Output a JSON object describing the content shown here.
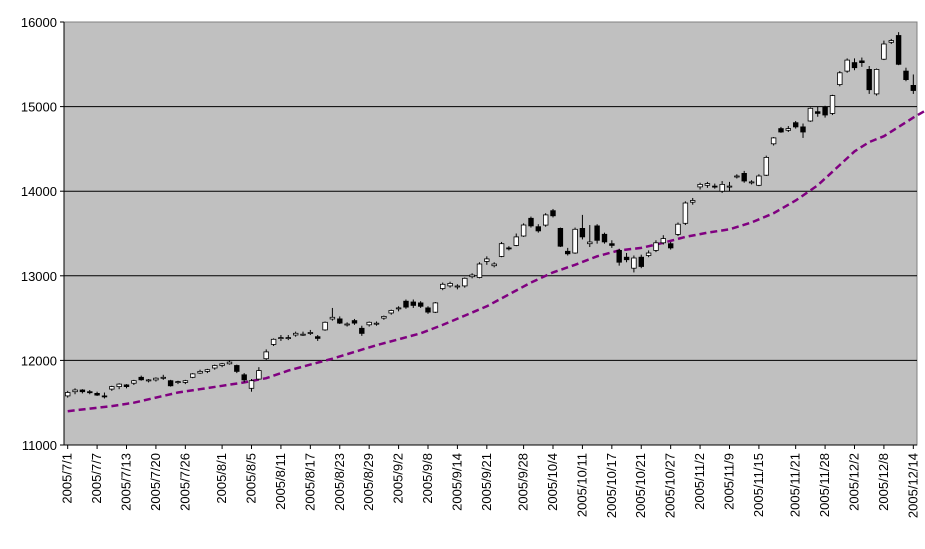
{
  "chart_data": {
    "type": "candlestick",
    "title": "",
    "xlabel": "",
    "ylabel": "",
    "ylim": [
      11000,
      16000
    ],
    "yticks": [
      11000,
      12000,
      13000,
      14000,
      15000,
      16000
    ],
    "yticklabels": [
      "11000",
      "12000",
      "13000",
      "14000",
      "15000",
      "16000"
    ],
    "xticklabels": [
      "2005/7/1",
      "2005/7/7",
      "2005/7/13",
      "2005/7/20",
      "2005/7/26",
      "2005/8/1",
      "2005/8/5",
      "2005/8/11",
      "2005/8/17",
      "2005/8/23",
      "2005/8/29",
      "2005/9/2",
      "2005/9/8",
      "2005/9/14",
      "2005/9/21",
      "2005/9/28",
      "2005/10/4",
      "2005/10/11",
      "2005/10/17",
      "2005/10/21",
      "2005/10/27",
      "2005/11/2",
      "2005/11/9",
      "2005/11/15",
      "2005/11/21",
      "2005/11/28",
      "2005/12/2",
      "2005/12/8",
      "2005/12/14"
    ],
    "grid": true,
    "plot_background": "#c0c0c0",
    "up_color": "#ffffff",
    "down_color": "#000000",
    "ma_color": "#800080",
    "legend": "none",
    "series": [
      {
        "type": "candlestick",
        "values": [
          {
            "o": 11580,
            "h": 11640,
            "l": 11560,
            "c": 11620
          },
          {
            "o": 11630,
            "h": 11670,
            "l": 11600,
            "c": 11650
          },
          {
            "o": 11650,
            "h": 11660,
            "l": 11610,
            "c": 11630
          },
          {
            "o": 11630,
            "h": 11650,
            "l": 11600,
            "c": 11620
          },
          {
            "o": 11610,
            "h": 11630,
            "l": 11580,
            "c": 11590
          },
          {
            "o": 11580,
            "h": 11620,
            "l": 11550,
            "c": 11570
          },
          {
            "o": 11660,
            "h": 11700,
            "l": 11640,
            "c": 11690
          },
          {
            "o": 11690,
            "h": 11730,
            "l": 11660,
            "c": 11720
          },
          {
            "o": 11710,
            "h": 11720,
            "l": 11670,
            "c": 11690
          },
          {
            "o": 11730,
            "h": 11770,
            "l": 11710,
            "c": 11760
          },
          {
            "o": 11800,
            "h": 11820,
            "l": 11760,
            "c": 11770
          },
          {
            "o": 11760,
            "h": 11780,
            "l": 11740,
            "c": 11770
          },
          {
            "o": 11770,
            "h": 11800,
            "l": 11750,
            "c": 11790
          },
          {
            "o": 11790,
            "h": 11830,
            "l": 11770,
            "c": 11800
          },
          {
            "o": 11760,
            "h": 11770,
            "l": 11690,
            "c": 11700
          },
          {
            "o": 11740,
            "h": 11760,
            "l": 11720,
            "c": 11750
          },
          {
            "o": 11740,
            "h": 11770,
            "l": 11720,
            "c": 11760
          },
          {
            "o": 11800,
            "h": 11850,
            "l": 11790,
            "c": 11840
          },
          {
            "o": 11850,
            "h": 11890,
            "l": 11840,
            "c": 11870
          },
          {
            "o": 11870,
            "h": 11900,
            "l": 11850,
            "c": 11890
          },
          {
            "o": 11910,
            "h": 11950,
            "l": 11890,
            "c": 11940
          },
          {
            "o": 11940,
            "h": 11970,
            "l": 11920,
            "c": 11960
          },
          {
            "o": 11960,
            "h": 12000,
            "l": 11950,
            "c": 11980
          },
          {
            "o": 11940,
            "h": 11950,
            "l": 11850,
            "c": 11870
          },
          {
            "o": 11830,
            "h": 11850,
            "l": 11740,
            "c": 11770
          },
          {
            "o": 11670,
            "h": 11780,
            "l": 11630,
            "c": 11760
          },
          {
            "o": 11780,
            "h": 11920,
            "l": 11770,
            "c": 11880
          },
          {
            "o": 12020,
            "h": 12130,
            "l": 12000,
            "c": 12100
          },
          {
            "o": 12190,
            "h": 12260,
            "l": 12170,
            "c": 12250
          },
          {
            "o": 12260,
            "h": 12300,
            "l": 12230,
            "c": 12270
          },
          {
            "o": 12270,
            "h": 12300,
            "l": 12240,
            "c": 12270
          },
          {
            "o": 12300,
            "h": 12340,
            "l": 12280,
            "c": 12320
          },
          {
            "o": 12310,
            "h": 12340,
            "l": 12290,
            "c": 12310
          },
          {
            "o": 12320,
            "h": 12360,
            "l": 12300,
            "c": 12330
          },
          {
            "o": 12280,
            "h": 12300,
            "l": 12230,
            "c": 12260
          },
          {
            "o": 12360,
            "h": 12460,
            "l": 12350,
            "c": 12450
          },
          {
            "o": 12490,
            "h": 12620,
            "l": 12470,
            "c": 12510
          },
          {
            "o": 12490,
            "h": 12520,
            "l": 12430,
            "c": 12440
          },
          {
            "o": 12420,
            "h": 12450,
            "l": 12400,
            "c": 12430
          },
          {
            "o": 12470,
            "h": 12490,
            "l": 12420,
            "c": 12440
          },
          {
            "o": 12380,
            "h": 12410,
            "l": 12290,
            "c": 12320
          },
          {
            "o": 12420,
            "h": 12460,
            "l": 12400,
            "c": 12450
          },
          {
            "o": 12430,
            "h": 12460,
            "l": 12410,
            "c": 12440
          },
          {
            "o": 12500,
            "h": 12530,
            "l": 12480,
            "c": 12520
          },
          {
            "o": 12560,
            "h": 12600,
            "l": 12540,
            "c": 12590
          },
          {
            "o": 12610,
            "h": 12640,
            "l": 12580,
            "c": 12620
          },
          {
            "o": 12700,
            "h": 12720,
            "l": 12610,
            "c": 12630
          },
          {
            "o": 12690,
            "h": 12720,
            "l": 12620,
            "c": 12650
          },
          {
            "o": 12680,
            "h": 12700,
            "l": 12620,
            "c": 12640
          },
          {
            "o": 12620,
            "h": 12640,
            "l": 12550,
            "c": 12570
          },
          {
            "o": 12570,
            "h": 12690,
            "l": 12560,
            "c": 12680
          },
          {
            "o": 12850,
            "h": 12920,
            "l": 12830,
            "c": 12900
          },
          {
            "o": 12880,
            "h": 12930,
            "l": 12860,
            "c": 12910
          },
          {
            "o": 12870,
            "h": 12900,
            "l": 12840,
            "c": 12880
          },
          {
            "o": 12880,
            "h": 12980,
            "l": 12860,
            "c": 12970
          },
          {
            "o": 12990,
            "h": 13030,
            "l": 12970,
            "c": 13010
          },
          {
            "o": 12980,
            "h": 13160,
            "l": 12970,
            "c": 13140
          },
          {
            "o": 13170,
            "h": 13230,
            "l": 13130,
            "c": 13200
          },
          {
            "o": 13120,
            "h": 13160,
            "l": 13100,
            "c": 13140
          },
          {
            "o": 13230,
            "h": 13400,
            "l": 13220,
            "c": 13380
          },
          {
            "o": 13330,
            "h": 13350,
            "l": 13300,
            "c": 13320
          },
          {
            "o": 13360,
            "h": 13500,
            "l": 13350,
            "c": 13460
          },
          {
            "o": 13470,
            "h": 13620,
            "l": 13460,
            "c": 13600
          },
          {
            "o": 13680,
            "h": 13700,
            "l": 13570,
            "c": 13590
          },
          {
            "o": 13580,
            "h": 13610,
            "l": 13510,
            "c": 13530
          },
          {
            "o": 13600,
            "h": 13740,
            "l": 13580,
            "c": 13720
          },
          {
            "o": 13770,
            "h": 13790,
            "l": 13690,
            "c": 13710
          },
          {
            "o": 13560,
            "h": 13570,
            "l": 13340,
            "c": 13350
          },
          {
            "o": 13290,
            "h": 13330,
            "l": 13240,
            "c": 13260
          },
          {
            "o": 13270,
            "h": 13570,
            "l": 13260,
            "c": 13550
          },
          {
            "o": 13560,
            "h": 13720,
            "l": 13430,
            "c": 13460
          },
          {
            "o": 13380,
            "h": 13600,
            "l": 13340,
            "c": 13400
          },
          {
            "o": 13590,
            "h": 13610,
            "l": 13380,
            "c": 13420
          },
          {
            "o": 13490,
            "h": 13510,
            "l": 13380,
            "c": 13400
          },
          {
            "o": 13380,
            "h": 13420,
            "l": 13330,
            "c": 13360
          },
          {
            "o": 13300,
            "h": 13320,
            "l": 13120,
            "c": 13160
          },
          {
            "o": 13220,
            "h": 13270,
            "l": 13160,
            "c": 13190
          },
          {
            "o": 13090,
            "h": 13240,
            "l": 13040,
            "c": 13210
          },
          {
            "o": 13220,
            "h": 13250,
            "l": 13090,
            "c": 13110
          },
          {
            "o": 13240,
            "h": 13300,
            "l": 13220,
            "c": 13270
          },
          {
            "o": 13300,
            "h": 13420,
            "l": 13280,
            "c": 13390
          },
          {
            "o": 13390,
            "h": 13480,
            "l": 13370,
            "c": 13440
          },
          {
            "o": 13380,
            "h": 13400,
            "l": 13310,
            "c": 13330
          },
          {
            "o": 13490,
            "h": 13630,
            "l": 13470,
            "c": 13610
          },
          {
            "o": 13620,
            "h": 13880,
            "l": 13600,
            "c": 13860
          },
          {
            "o": 13870,
            "h": 13920,
            "l": 13840,
            "c": 13890
          },
          {
            "o": 14050,
            "h": 14100,
            "l": 14020,
            "c": 14080
          },
          {
            "o": 14070,
            "h": 14110,
            "l": 14040,
            "c": 14090
          },
          {
            "o": 14060,
            "h": 14090,
            "l": 14030,
            "c": 14050
          },
          {
            "o": 14000,
            "h": 14120,
            "l": 13980,
            "c": 14080
          },
          {
            "o": 14050,
            "h": 14110,
            "l": 14000,
            "c": 14060
          },
          {
            "o": 14170,
            "h": 14200,
            "l": 14150,
            "c": 14180
          },
          {
            "o": 14210,
            "h": 14240,
            "l": 14100,
            "c": 14120
          },
          {
            "o": 14100,
            "h": 14130,
            "l": 14080,
            "c": 14110
          },
          {
            "o": 14070,
            "h": 14200,
            "l": 14060,
            "c": 14180
          },
          {
            "o": 14190,
            "h": 14420,
            "l": 14180,
            "c": 14400
          },
          {
            "o": 14560,
            "h": 14640,
            "l": 14540,
            "c": 14630
          },
          {
            "o": 14740,
            "h": 14760,
            "l": 14690,
            "c": 14700
          },
          {
            "o": 14720,
            "h": 14770,
            "l": 14700,
            "c": 14740
          },
          {
            "o": 14810,
            "h": 14830,
            "l": 14740,
            "c": 14760
          },
          {
            "o": 14760,
            "h": 14800,
            "l": 14630,
            "c": 14700
          },
          {
            "o": 14830,
            "h": 14990,
            "l": 14820,
            "c": 14980
          },
          {
            "o": 14940,
            "h": 15000,
            "l": 14880,
            "c": 14920
          },
          {
            "o": 14990,
            "h": 15010,
            "l": 14870,
            "c": 14900
          },
          {
            "o": 14920,
            "h": 15140,
            "l": 14900,
            "c": 15130
          },
          {
            "o": 15260,
            "h": 15420,
            "l": 15240,
            "c": 15400
          },
          {
            "o": 15420,
            "h": 15570,
            "l": 15400,
            "c": 15550
          },
          {
            "o": 15520,
            "h": 15570,
            "l": 15430,
            "c": 15460
          },
          {
            "o": 15540,
            "h": 15580,
            "l": 15470,
            "c": 15520
          },
          {
            "o": 15440,
            "h": 15480,
            "l": 15150,
            "c": 15200
          },
          {
            "o": 15150,
            "h": 15450,
            "l": 15130,
            "c": 15440
          },
          {
            "o": 15560,
            "h": 15780,
            "l": 15550,
            "c": 15740
          },
          {
            "o": 15760,
            "h": 15800,
            "l": 15740,
            "c": 15780
          },
          {
            "o": 15840,
            "h": 15880,
            "l": 15490,
            "c": 15500
          },
          {
            "o": 15420,
            "h": 15460,
            "l": 15300,
            "c": 15320
          },
          {
            "o": 15250,
            "h": 15380,
            "l": 15150,
            "c": 15190
          }
        ]
      },
      {
        "type": "line",
        "style": "dashed",
        "values": [
          [
            0,
            11400
          ],
          [
            3,
            11430
          ],
          [
            6,
            11460
          ],
          [
            9,
            11500
          ],
          [
            12,
            11560
          ],
          [
            15,
            11620
          ],
          [
            18,
            11660
          ],
          [
            21,
            11700
          ],
          [
            24,
            11740
          ],
          [
            27,
            11790
          ],
          [
            30,
            11880
          ],
          [
            33,
            11950
          ],
          [
            36,
            12020
          ],
          [
            39,
            12100
          ],
          [
            42,
            12180
          ],
          [
            45,
            12250
          ],
          [
            48,
            12320
          ],
          [
            51,
            12420
          ],
          [
            54,
            12530
          ],
          [
            57,
            12640
          ],
          [
            60,
            12780
          ],
          [
            63,
            12920
          ],
          [
            66,
            13040
          ],
          [
            69,
            13130
          ],
          [
            72,
            13230
          ],
          [
            75,
            13300
          ],
          [
            78,
            13330
          ],
          [
            81,
            13390
          ],
          [
            84,
            13460
          ],
          [
            87,
            13510
          ],
          [
            90,
            13550
          ],
          [
            93,
            13630
          ],
          [
            96,
            13740
          ],
          [
            99,
            13890
          ],
          [
            102,
            14070
          ],
          [
            105,
            14310
          ],
          [
            107,
            14470
          ],
          [
            109,
            14580
          ],
          [
            111,
            14650
          ],
          [
            113,
            14760
          ],
          [
            115,
            14870
          ],
          [
            117,
            14970
          ]
        ]
      }
    ]
  }
}
